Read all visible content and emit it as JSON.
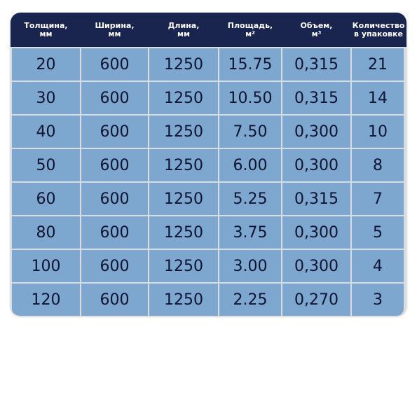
{
  "table": {
    "headers": [
      "Толщина,\nмм",
      "Ширина,\nмм",
      "Длина,\nмм",
      "Площадь,\nм²",
      "Объем,\nм³",
      "Количество\nв упаковке"
    ],
    "rows": [
      [
        "20",
        "600",
        "1250",
        "15.75",
        "0,315",
        "21"
      ],
      [
        "30",
        "600",
        "1250",
        "10.50",
        "0,315",
        "14"
      ],
      [
        "40",
        "600",
        "1250",
        "7.50",
        "0,300",
        "10"
      ],
      [
        "50",
        "600",
        "1250",
        "6.00",
        "0,300",
        "8"
      ],
      [
        "60",
        "600",
        "1250",
        "5.25",
        "0,315",
        "7"
      ],
      [
        "80",
        "600",
        "1250",
        "3.75",
        "0,300",
        "5"
      ],
      [
        "100",
        "600",
        "1250",
        "3.00",
        "0,300",
        "4"
      ],
      [
        "120",
        "600",
        "1250",
        "2.25",
        "0,270",
        "3"
      ]
    ]
  },
  "colors": {
    "header_bg": "#19244f",
    "cell_bg": "#7ea7d0",
    "grid_line": "#d9dde2"
  }
}
